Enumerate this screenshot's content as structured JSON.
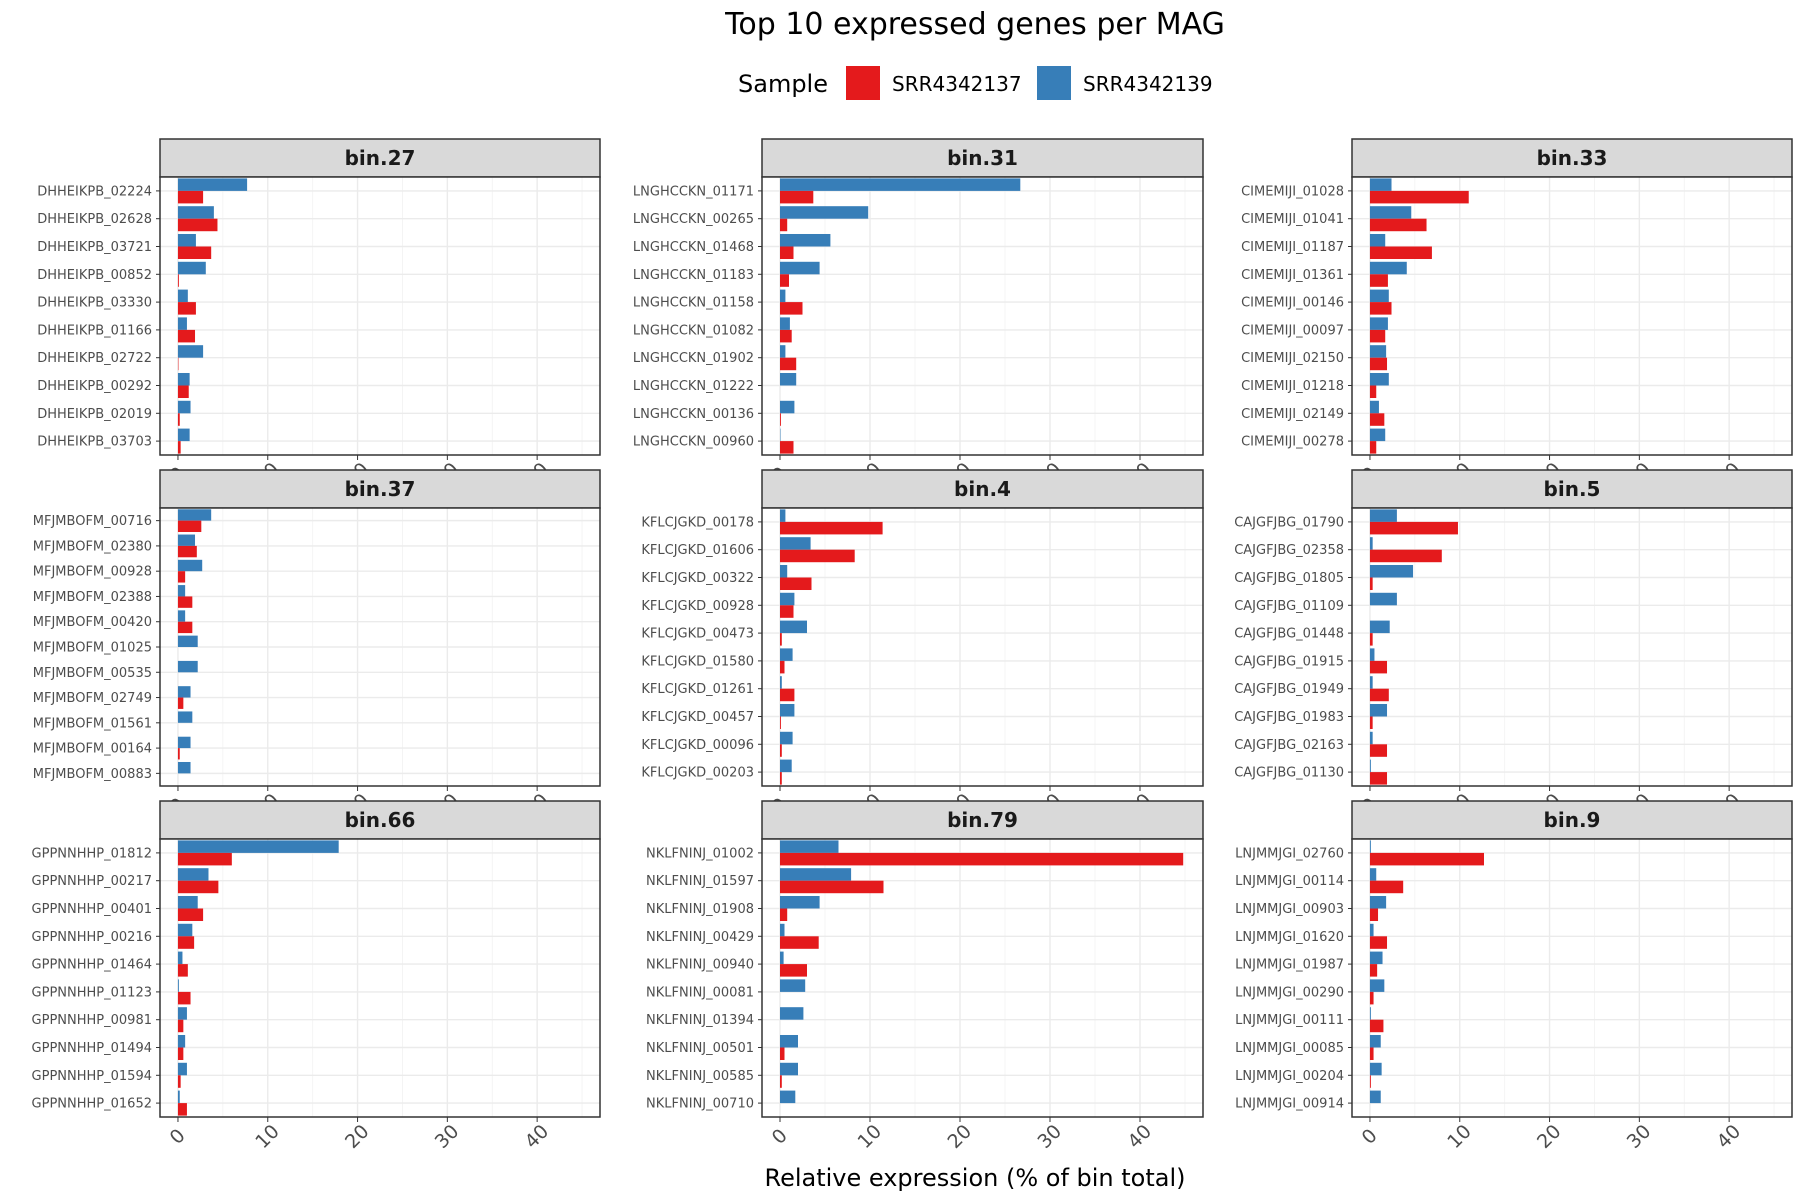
{
  "chart_data": {
    "type": "bar",
    "title": "Top 10 expressed genes per MAG",
    "xlabel": "Relative expression (% of bin total)",
    "ylabel": "",
    "xlim": [
      -2,
      47
    ],
    "xticks": [
      0,
      10,
      20,
      30,
      40
    ],
    "grid": true,
    "legend": {
      "title": "Sample",
      "position": "top",
      "entries": [
        {
          "name": "SRR4342137",
          "color": "#E41A1C"
        },
        {
          "name": "SRR4342139",
          "color": "#377EB8"
        }
      ]
    },
    "panels": [
      {
        "title": "bin.27",
        "genes": [
          "DHHEIKPB_02224",
          "DHHEIKPB_02628",
          "DHHEIKPB_03721",
          "DHHEIKPB_00852",
          "DHHEIKPB_03330",
          "DHHEIKPB_01166",
          "DHHEIKPB_02722",
          "DHHEIKPB_00292",
          "DHHEIKPB_02019",
          "DHHEIKPB_03703"
        ],
        "SRR4342139": [
          7.7,
          4.0,
          2.0,
          3.1,
          1.1,
          1.0,
          2.8,
          1.3,
          1.4,
          1.3
        ],
        "SRR4342137": [
          2.8,
          4.4,
          3.7,
          0.1,
          2.0,
          1.9,
          0.05,
          1.2,
          0.2,
          0.3
        ]
      },
      {
        "title": "bin.31",
        "genes": [
          "LNGHCCKN_01171",
          "LNGHCCKN_00265",
          "LNGHCCKN_01468",
          "LNGHCCKN_01183",
          "LNGHCCKN_01158",
          "LNGHCCKN_01082",
          "LNGHCCKN_01902",
          "LNGHCCKN_01222",
          "LNGHCCKN_00136",
          "LNGHCCKN_00960"
        ],
        "SRR4342139": [
          26.7,
          9.8,
          5.6,
          4.4,
          0.6,
          1.1,
          0.6,
          1.8,
          1.6,
          0.05
        ],
        "SRR4342137": [
          3.7,
          0.8,
          1.5,
          1.0,
          2.5,
          1.3,
          1.8,
          0.0,
          0.1,
          1.5
        ]
      },
      {
        "title": "bin.33",
        "genes": [
          "CIMEMIJI_01028",
          "CIMEMIJI_01041",
          "CIMEMIJI_01187",
          "CIMEMIJI_01361",
          "CIMEMIJI_00146",
          "CIMEMIJI_00097",
          "CIMEMIJI_02150",
          "CIMEMIJI_01218",
          "CIMEMIJI_02149",
          "CIMEMIJI_00278"
        ],
        "SRR4342139": [
          2.4,
          4.6,
          1.7,
          4.1,
          2.1,
          2.0,
          1.8,
          2.1,
          1.0,
          1.7
        ],
        "SRR4342137": [
          11.0,
          6.3,
          6.9,
          2.0,
          2.4,
          1.7,
          1.9,
          0.7,
          1.6,
          0.7
        ]
      },
      {
        "title": "bin.37",
        "genes": [
          "MFJMBOFM_00716",
          "MFJMBOFM_02380",
          "MFJMBOFM_00928",
          "MFJMBOFM_02388",
          "MFJMBOFM_00420",
          "MFJMBOFM_01025",
          "MFJMBOFM_00535",
          "MFJMBOFM_02749",
          "MFJMBOFM_01561",
          "MFJMBOFM_00164",
          "MFJMBOFM_00883"
        ],
        "SRR4342139": [
          3.7,
          1.9,
          2.7,
          0.8,
          0.8,
          2.2,
          2.2,
          1.4,
          1.6,
          1.4,
          1.4
        ],
        "SRR4342137": [
          2.6,
          2.1,
          0.8,
          1.6,
          1.6,
          0.0,
          0.0,
          0.6,
          0.0,
          0.2,
          0.0
        ]
      },
      {
        "title": "bin.4",
        "genes": [
          "KFLCJGKD_00178",
          "KFLCJGKD_01606",
          "KFLCJGKD_00322",
          "KFLCJGKD_00928",
          "KFLCJGKD_00473",
          "KFLCJGKD_01580",
          "KFLCJGKD_01261",
          "KFLCJGKD_00457",
          "KFLCJGKD_00096",
          "KFLCJGKD_00203"
        ],
        "SRR4342139": [
          0.6,
          3.4,
          0.8,
          1.6,
          3.0,
          1.4,
          0.2,
          1.6,
          1.4,
          1.3
        ],
        "SRR4342137": [
          11.4,
          8.3,
          3.5,
          1.5,
          0.2,
          0.5,
          1.6,
          0.1,
          0.2,
          0.2
        ]
      },
      {
        "title": "bin.5",
        "genes": [
          "CAJGFJBG_01790",
          "CAJGFJBG_02358",
          "CAJGFJBG_01805",
          "CAJGFJBG_01109",
          "CAJGFJBG_01448",
          "CAJGFJBG_01915",
          "CAJGFJBG_01949",
          "CAJGFJBG_01983",
          "CAJGFJBG_02163",
          "CAJGFJBG_01130"
        ],
        "SRR4342139": [
          3.0,
          0.3,
          4.8,
          3.0,
          2.2,
          0.5,
          0.3,
          1.9,
          0.3,
          0.1
        ],
        "SRR4342137": [
          9.8,
          8.0,
          0.3,
          0.0,
          0.3,
          1.9,
          2.1,
          0.3,
          1.9,
          1.9
        ]
      },
      {
        "title": "bin.66",
        "genes": [
          "GPPNNHHP_01812",
          "GPPNNHHP_00217",
          "GPPNNHHP_00401",
          "GPPNNHHP_00216",
          "GPPNNHHP_01464",
          "GPPNNHHP_01123",
          "GPPNNHHP_00981",
          "GPPNNHHP_01494",
          "GPPNNHHP_01594",
          "GPPNNHHP_01652"
        ],
        "SRR4342139": [
          17.9,
          3.4,
          2.2,
          1.6,
          0.5,
          0.1,
          1.0,
          0.8,
          1.0,
          0.2
        ],
        "SRR4342137": [
          6.0,
          4.5,
          2.8,
          1.8,
          1.1,
          1.4,
          0.6,
          0.6,
          0.3,
          1.0
        ]
      },
      {
        "title": "bin.79",
        "genes": [
          "NKLFNINJ_01002",
          "NKLFNINJ_01597",
          "NKLFNINJ_01908",
          "NKLFNINJ_00429",
          "NKLFNINJ_00940",
          "NKLFNINJ_00081",
          "NKLFNINJ_01394",
          "NKLFNINJ_00501",
          "NKLFNINJ_00585",
          "NKLFNINJ_00710"
        ],
        "SRR4342139": [
          6.5,
          7.9,
          4.4,
          0.5,
          0.4,
          2.8,
          2.6,
          2.0,
          2.0,
          1.7
        ],
        "SRR4342137": [
          44.8,
          11.5,
          0.8,
          4.3,
          3.0,
          0.0,
          0.0,
          0.5,
          0.2,
          0.0
        ]
      },
      {
        "title": "bin.9",
        "genes": [
          "LNJMMJGI_02760",
          "LNJMMJGI_00114",
          "LNJMMJGI_00903",
          "LNJMMJGI_01620",
          "LNJMMJGI_01987",
          "LNJMMJGI_00290",
          "LNJMMJGI_00111",
          "LNJMMJGI_00085",
          "LNJMMJGI_00204",
          "LNJMMJGI_00914"
        ],
        "SRR4342139": [
          0.1,
          0.7,
          1.8,
          0.4,
          1.4,
          1.6,
          0.1,
          1.2,
          1.3,
          1.2
        ],
        "SRR4342137": [
          12.7,
          3.7,
          0.9,
          1.9,
          0.8,
          0.4,
          1.5,
          0.4,
          0.1,
          0.0
        ]
      }
    ]
  }
}
